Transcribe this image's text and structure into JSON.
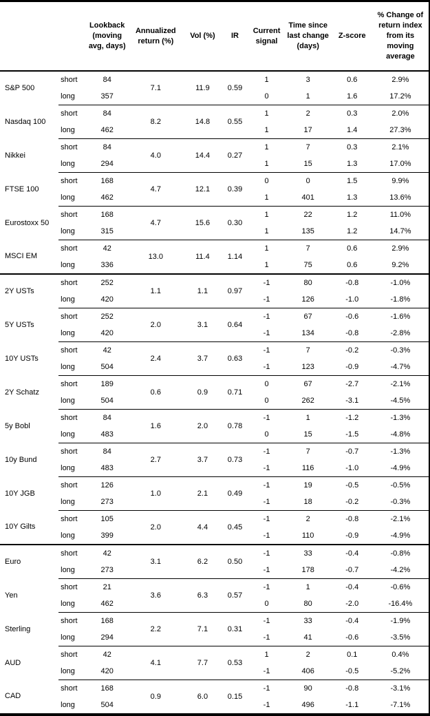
{
  "chart_data": {
    "type": "table",
    "headers": {
      "asset": "",
      "period": "",
      "lookback": "Lookback (moving avg, days)",
      "ann": "Annualized return (%)",
      "vol": "Vol (%)",
      "ir": "IR",
      "signal": "Current signal",
      "time": "Time since last change (days)",
      "z": "Z-score",
      "chg": "% Change of return index from its moving average"
    },
    "groups": [
      {
        "name": "S&P 500",
        "section_start": false,
        "ann": "7.1",
        "vol": "11.9",
        "ir": "0.59",
        "rows": [
          {
            "period": "short",
            "lookback": "84",
            "signal": "1",
            "time": "3",
            "z": "0.6",
            "chg": "2.9%"
          },
          {
            "period": "long",
            "lookback": "357",
            "signal": "0",
            "time": "1",
            "z": "1.6",
            "chg": "17.2%"
          }
        ]
      },
      {
        "name": "Nasdaq 100",
        "section_start": false,
        "ann": "8.2",
        "vol": "14.8",
        "ir": "0.55",
        "rows": [
          {
            "period": "short",
            "lookback": "84",
            "signal": "1",
            "time": "2",
            "z": "0.3",
            "chg": "2.0%"
          },
          {
            "period": "long",
            "lookback": "462",
            "signal": "1",
            "time": "17",
            "z": "1.4",
            "chg": "27.3%"
          }
        ]
      },
      {
        "name": "Nikkei",
        "section_start": false,
        "ann": "4.0",
        "vol": "14.4",
        "ir": "0.27",
        "rows": [
          {
            "period": "short",
            "lookback": "84",
            "signal": "1",
            "time": "7",
            "z": "0.3",
            "chg": "2.1%"
          },
          {
            "period": "long",
            "lookback": "294",
            "signal": "1",
            "time": "15",
            "z": "1.3",
            "chg": "17.0%"
          }
        ]
      },
      {
        "name": "FTSE 100",
        "section_start": false,
        "ann": "4.7",
        "vol": "12.1",
        "ir": "0.39",
        "rows": [
          {
            "period": "short",
            "lookback": "168",
            "signal": "0",
            "time": "0",
            "z": "1.5",
            "chg": "9.9%"
          },
          {
            "period": "long",
            "lookback": "462",
            "signal": "1",
            "time": "401",
            "z": "1.3",
            "chg": "13.6%"
          }
        ]
      },
      {
        "name": "Eurostoxx 50",
        "section_start": false,
        "ann": "4.7",
        "vol": "15.6",
        "ir": "0.30",
        "rows": [
          {
            "period": "short",
            "lookback": "168",
            "signal": "1",
            "time": "22",
            "z": "1.2",
            "chg": "11.0%"
          },
          {
            "period": "long",
            "lookback": "315",
            "signal": "1",
            "time": "135",
            "z": "1.2",
            "chg": "14.7%"
          }
        ]
      },
      {
        "name": "MSCI EM",
        "section_start": false,
        "ann": "13.0",
        "vol": "11.4",
        "ir": "1.14",
        "rows": [
          {
            "period": "short",
            "lookback": "42",
            "signal": "1",
            "time": "7",
            "z": "0.6",
            "chg": "2.9%"
          },
          {
            "period": "long",
            "lookback": "336",
            "signal": "1",
            "time": "75",
            "z": "0.6",
            "chg": "9.2%"
          }
        ]
      },
      {
        "name": "2Y USTs",
        "section_start": true,
        "ann": "1.1",
        "vol": "1.1",
        "ir": "0.97",
        "rows": [
          {
            "period": "short",
            "lookback": "252",
            "signal": "-1",
            "time": "80",
            "z": "-0.8",
            "chg": "-1.0%"
          },
          {
            "period": "long",
            "lookback": "420",
            "signal": "-1",
            "time": "126",
            "z": "-1.0",
            "chg": "-1.8%"
          }
        ]
      },
      {
        "name": "5Y USTs",
        "section_start": false,
        "ann": "2.0",
        "vol": "3.1",
        "ir": "0.64",
        "rows": [
          {
            "period": "short",
            "lookback": "252",
            "signal": "-1",
            "time": "67",
            "z": "-0.6",
            "chg": "-1.6%"
          },
          {
            "period": "long",
            "lookback": "420",
            "signal": "-1",
            "time": "134",
            "z": "-0.8",
            "chg": "-2.8%"
          }
        ]
      },
      {
        "name": "10Y USTs",
        "section_start": false,
        "ann": "2.4",
        "vol": "3.7",
        "ir": "0.63",
        "rows": [
          {
            "period": "short",
            "lookback": "42",
            "signal": "-1",
            "time": "7",
            "z": "-0.2",
            "chg": "-0.3%"
          },
          {
            "period": "long",
            "lookback": "504",
            "signal": "-1",
            "time": "123",
            "z": "-0.9",
            "chg": "-4.7%"
          }
        ]
      },
      {
        "name": "2Y Schatz",
        "section_start": false,
        "ann": "0.6",
        "vol": "0.9",
        "ir": "0.71",
        "rows": [
          {
            "period": "short",
            "lookback": "189",
            "signal": "0",
            "time": "67",
            "z": "-2.7",
            "chg": "-2.1%"
          },
          {
            "period": "long",
            "lookback": "504",
            "signal": "0",
            "time": "262",
            "z": "-3.1",
            "chg": "-4.5%"
          }
        ]
      },
      {
        "name": "5y Bobl",
        "section_start": false,
        "ann": "1.6",
        "vol": "2.0",
        "ir": "0.78",
        "rows": [
          {
            "period": "short",
            "lookback": "84",
            "signal": "-1",
            "time": "1",
            "z": "-1.2",
            "chg": "-1.3%"
          },
          {
            "period": "long",
            "lookback": "483",
            "signal": "0",
            "time": "15",
            "z": "-1.5",
            "chg": "-4.8%"
          }
        ]
      },
      {
        "name": "10y Bund",
        "section_start": false,
        "ann": "2.7",
        "vol": "3.7",
        "ir": "0.73",
        "rows": [
          {
            "period": "short",
            "lookback": "84",
            "signal": "-1",
            "time": "7",
            "z": "-0.7",
            "chg": "-1.3%"
          },
          {
            "period": "long",
            "lookback": "483",
            "signal": "-1",
            "time": "116",
            "z": "-1.0",
            "chg": "-4.9%"
          }
        ]
      },
      {
        "name": "10Y JGB",
        "section_start": false,
        "ann": "1.0",
        "vol": "2.1",
        "ir": "0.49",
        "rows": [
          {
            "period": "short",
            "lookback": "126",
            "signal": "-1",
            "time": "19",
            "z": "-0.5",
            "chg": "-0.5%"
          },
          {
            "period": "long",
            "lookback": "273",
            "signal": "-1",
            "time": "18",
            "z": "-0.2",
            "chg": "-0.3%"
          }
        ]
      },
      {
        "name": "10Y Gilts",
        "section_start": false,
        "ann": "2.0",
        "vol": "4.4",
        "ir": "0.45",
        "rows": [
          {
            "period": "short",
            "lookback": "105",
            "signal": "-1",
            "time": "2",
            "z": "-0.8",
            "chg": "-2.1%"
          },
          {
            "period": "long",
            "lookback": "399",
            "signal": "-1",
            "time": "110",
            "z": "-0.9",
            "chg": "-4.9%"
          }
        ]
      },
      {
        "name": "Euro",
        "section_start": true,
        "ann": "3.1",
        "vol": "6.2",
        "ir": "0.50",
        "rows": [
          {
            "period": "short",
            "lookback": "42",
            "signal": "-1",
            "time": "33",
            "z": "-0.4",
            "chg": "-0.8%"
          },
          {
            "period": "long",
            "lookback": "273",
            "signal": "-1",
            "time": "178",
            "z": "-0.7",
            "chg": "-4.2%"
          }
        ]
      },
      {
        "name": "Yen",
        "section_start": false,
        "ann": "3.6",
        "vol": "6.3",
        "ir": "0.57",
        "rows": [
          {
            "period": "short",
            "lookback": "21",
            "signal": "-1",
            "time": "1",
            "z": "-0.4",
            "chg": "-0.6%"
          },
          {
            "period": "long",
            "lookback": "462",
            "signal": "0",
            "time": "80",
            "z": "-2.0",
            "chg": "-16.4%"
          }
        ]
      },
      {
        "name": "Sterling",
        "section_start": false,
        "ann": "2.2",
        "vol": "7.1",
        "ir": "0.31",
        "rows": [
          {
            "period": "short",
            "lookback": "168",
            "signal": "-1",
            "time": "33",
            "z": "-0.4",
            "chg": "-1.9%"
          },
          {
            "period": "long",
            "lookback": "294",
            "signal": "-1",
            "time": "41",
            "z": "-0.6",
            "chg": "-3.5%"
          }
        ]
      },
      {
        "name": "AUD",
        "section_start": false,
        "ann": "4.1",
        "vol": "7.7",
        "ir": "0.53",
        "rows": [
          {
            "period": "short",
            "lookback": "42",
            "signal": "1",
            "time": "2",
            "z": "0.1",
            "chg": "0.4%"
          },
          {
            "period": "long",
            "lookback": "420",
            "signal": "-1",
            "time": "406",
            "z": "-0.5",
            "chg": "-5.2%"
          }
        ]
      },
      {
        "name": "CAD",
        "section_start": false,
        "ann": "0.9",
        "vol": "6.0",
        "ir": "0.15",
        "rows": [
          {
            "period": "short",
            "lookback": "168",
            "signal": "-1",
            "time": "90",
            "z": "-0.8",
            "chg": "-3.1%"
          },
          {
            "period": "long",
            "lookback": "504",
            "signal": "-1",
            "time": "496",
            "z": "-1.1",
            "chg": "-7.1%"
          }
        ]
      }
    ]
  }
}
